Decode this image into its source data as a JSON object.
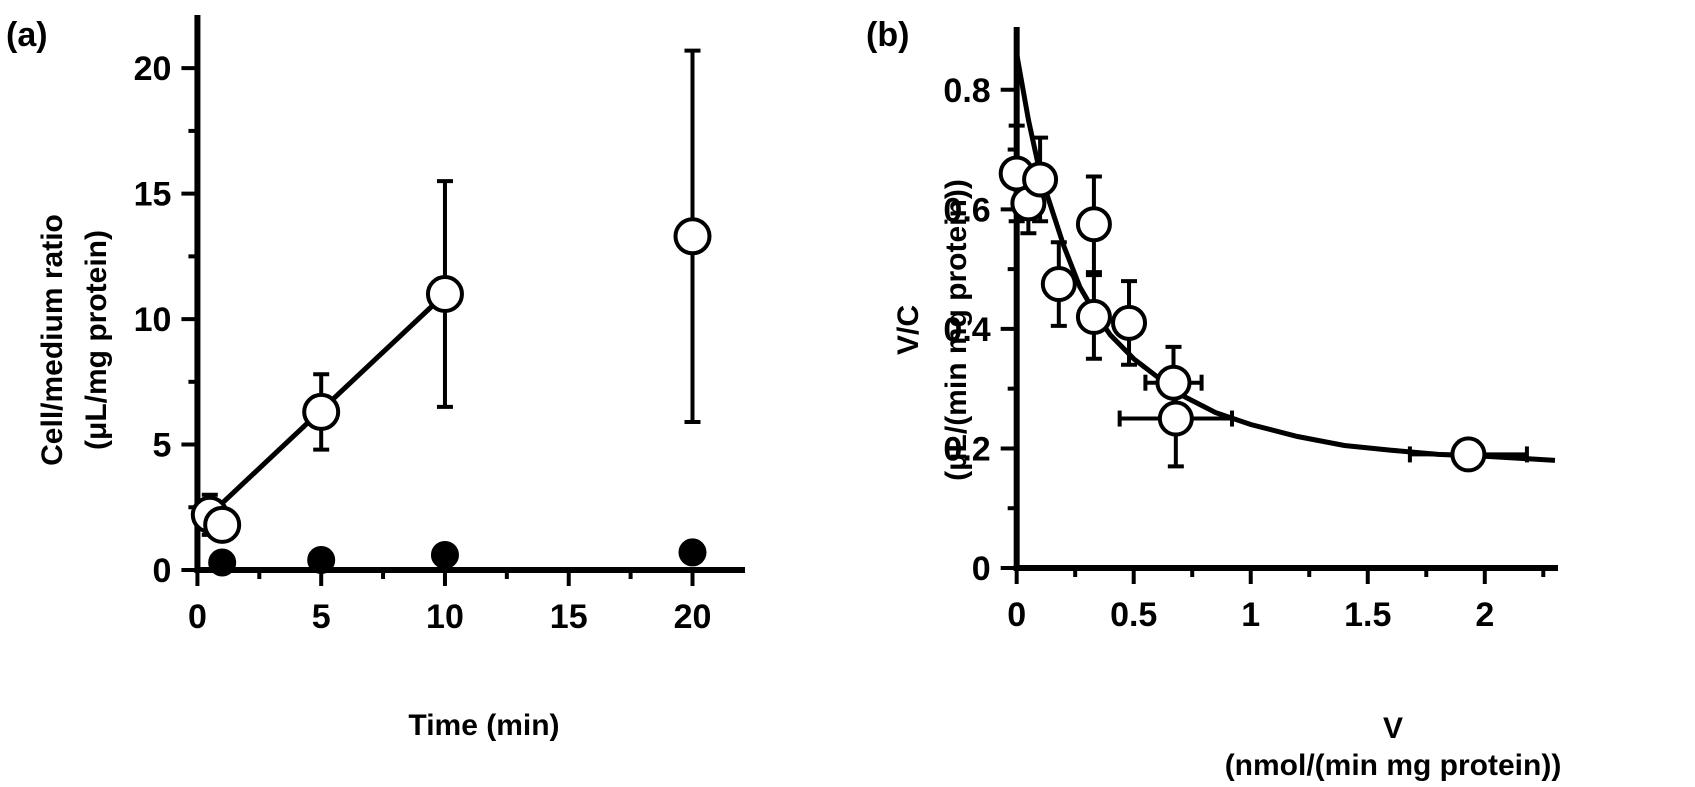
{
  "chart_data": [
    {
      "id": "a",
      "type": "scatter",
      "panel_label": "(a)",
      "xlabel": "Time (min)",
      "ylabel_lines": [
        "Cell/medium ratio",
        "(μL/mg protein)"
      ],
      "xlim": [
        -0.3,
        22
      ],
      "ylim": [
        0,
        22
      ],
      "xticks": [
        0,
        5,
        10,
        15,
        20
      ],
      "xtick_labels": [
        "0",
        "5",
        "10",
        "15",
        "20"
      ],
      "xminor": [
        2.5,
        7.5,
        12.5,
        17.5
      ],
      "yticks": [
        0,
        5,
        10,
        15,
        20
      ],
      "ytick_labels": [
        "0",
        "5",
        "10",
        "15",
        "20"
      ],
      "yminor": [
        2.5,
        7.5,
        12.5,
        17.5
      ],
      "series": [
        {
          "marker": "open-circle",
          "points": [
            {
              "x": 0.5,
              "y": 2.2,
              "yerr": 0.8
            },
            {
              "x": 1,
              "y": 1.8,
              "yerr": 0.4
            },
            {
              "x": 5,
              "y": 6.3,
              "yerr": 1.5
            },
            {
              "x": 10,
              "y": 11.0,
              "yerr": 4.5
            },
            {
              "x": 20,
              "y": 13.3,
              "yerr": 7.4
            }
          ],
          "fit_line": [
            [
              0.5,
              2.2
            ],
            [
              10,
              11.0
            ]
          ]
        },
        {
          "marker": "filled-circle",
          "points": [
            {
              "x": 1,
              "y": 0.3
            },
            {
              "x": 5,
              "y": 0.4
            },
            {
              "x": 10,
              "y": 0.6
            },
            {
              "x": 20,
              "y": 0.7
            }
          ]
        }
      ]
    },
    {
      "id": "b",
      "type": "scatter",
      "panel_label": "(b)",
      "xlabel_lines": [
        "V",
        "(nmol/(min mg protein))"
      ],
      "ylabel_lines": [
        "V/C",
        "(μL/(min mg protein))"
      ],
      "xlim": [
        -0.02,
        2.3
      ],
      "ylim": [
        0,
        0.9
      ],
      "xticks": [
        0,
        0.5,
        1,
        1.5,
        2
      ],
      "xtick_labels": [
        "0",
        "0.5",
        "1",
        "1.5",
        "2"
      ],
      "xminor": [
        0.25,
        0.75,
        1.25,
        1.75,
        2.25
      ],
      "yticks": [
        0,
        0.2,
        0.4,
        0.6,
        0.8
      ],
      "ytick_labels": [
        "0",
        "0.2",
        "0.4",
        "0.6",
        "0.8"
      ],
      "yminor": [
        0.1,
        0.3,
        0.5,
        0.7
      ],
      "series": [
        {
          "marker": "open-circle",
          "points": [
            {
              "x": 0.0,
              "y": 0.66,
              "xerr": 0.01,
              "yerr": 0.08
            },
            {
              "x": 0.05,
              "y": 0.61,
              "xerr": 0.02,
              "yerr": 0.05
            },
            {
              "x": 0.1,
              "y": 0.65,
              "xerr": 0.02,
              "yerr": 0.07
            },
            {
              "x": 0.18,
              "y": 0.475,
              "xerr": 0.03,
              "yerr": 0.07
            },
            {
              "x": 0.33,
              "y": 0.575,
              "xerr": 0.04,
              "yerr": 0.08
            },
            {
              "x": 0.33,
              "y": 0.42,
              "xerr": 0.04,
              "yerr": 0.07
            },
            {
              "x": 0.48,
              "y": 0.41,
              "xerr": 0.05,
              "yerr": 0.07
            },
            {
              "x": 0.67,
              "y": 0.31,
              "xerr": 0.12,
              "yerr": 0.06
            },
            {
              "x": 0.68,
              "y": 0.25,
              "xerr": 0.24,
              "yerr": 0.08
            },
            {
              "x": 1.93,
              "y": 0.19,
              "xerr": 0.25,
              "yerr": 0.01
            }
          ],
          "fit_curve": [
            [
              0.0,
              0.86
            ],
            [
              0.05,
              0.75
            ],
            [
              0.1,
              0.66
            ],
            [
              0.15,
              0.6
            ],
            [
              0.2,
              0.54
            ],
            [
              0.27,
              0.47
            ],
            [
              0.33,
              0.43
            ],
            [
              0.4,
              0.39
            ],
            [
              0.5,
              0.35
            ],
            [
              0.6,
              0.32
            ],
            [
              0.7,
              0.29
            ],
            [
              0.85,
              0.26
            ],
            [
              1.0,
              0.24
            ],
            [
              1.2,
              0.22
            ],
            [
              1.4,
              0.205
            ],
            [
              1.6,
              0.197
            ],
            [
              1.8,
              0.19
            ],
            [
              2.0,
              0.187
            ],
            [
              2.3,
              0.18
            ]
          ]
        }
      ]
    }
  ]
}
